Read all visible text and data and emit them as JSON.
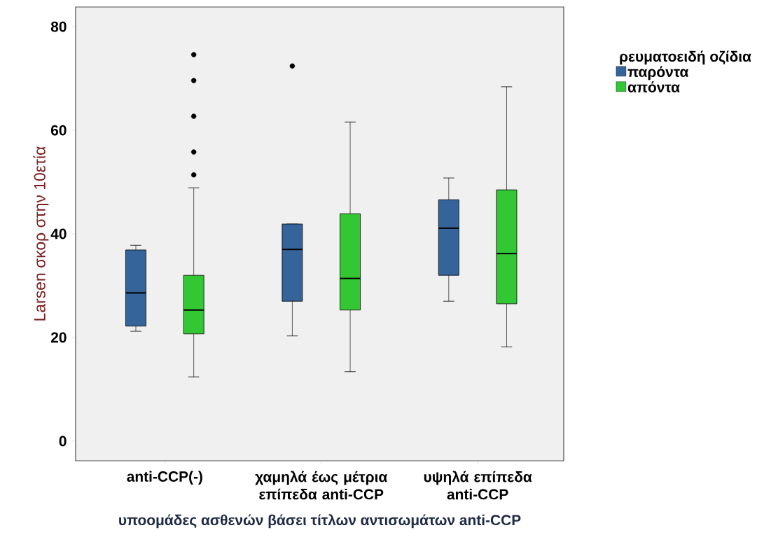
{
  "chart_data": {
    "type": "box",
    "xlabel": "υποομάδες ασθενών βάσει τίτλων αντισωμάτων anti-CCP",
    "ylabel": "Larsen σκορ στην 10ετία",
    "legend_title": "ρευματοειδή οζίδια",
    "legend": "top right",
    "categories": [
      "anti-CCP(-)",
      "χαμηλά έως μέτρια επίπεδα anti-CCP",
      "υψηλά επίπεδα anti-CCP"
    ],
    "ylim": [
      -3.8,
      83.8
    ],
    "yticks": [
      0,
      20,
      40,
      60,
      80
    ],
    "grid": false,
    "series": [
      {
        "name": "παρόντα",
        "color": "#34649a",
        "boxes": [
          {
            "low": 21.2,
            "q1": 22.2,
            "median": 28.6,
            "q3": 36.9,
            "high": 37.8
          },
          {
            "low": 20.3,
            "q1": 27.0,
            "median": 37.0,
            "q3": 41.9,
            "high": 41.9,
            "outliers": [
              72.4
            ]
          },
          {
            "low": 27.0,
            "q1": 32.0,
            "median": 41.1,
            "q3": 46.6,
            "high": 50.8
          }
        ]
      },
      {
        "name": "απόντα",
        "color": "#33c833",
        "boxes": [
          {
            "low": 12.4,
            "q1": 20.7,
            "median": 25.3,
            "q3": 32.0,
            "high": 48.9,
            "outliers": [
              51.4,
              55.8,
              62.7,
              69.6,
              74.6
            ]
          },
          {
            "low": 13.4,
            "q1": 25.3,
            "median": 31.4,
            "q3": 43.9,
            "high": 61.6
          },
          {
            "low": 18.2,
            "q1": 26.5,
            "median": 36.2,
            "q3": 48.5,
            "high": 68.4
          }
        ]
      }
    ]
  }
}
